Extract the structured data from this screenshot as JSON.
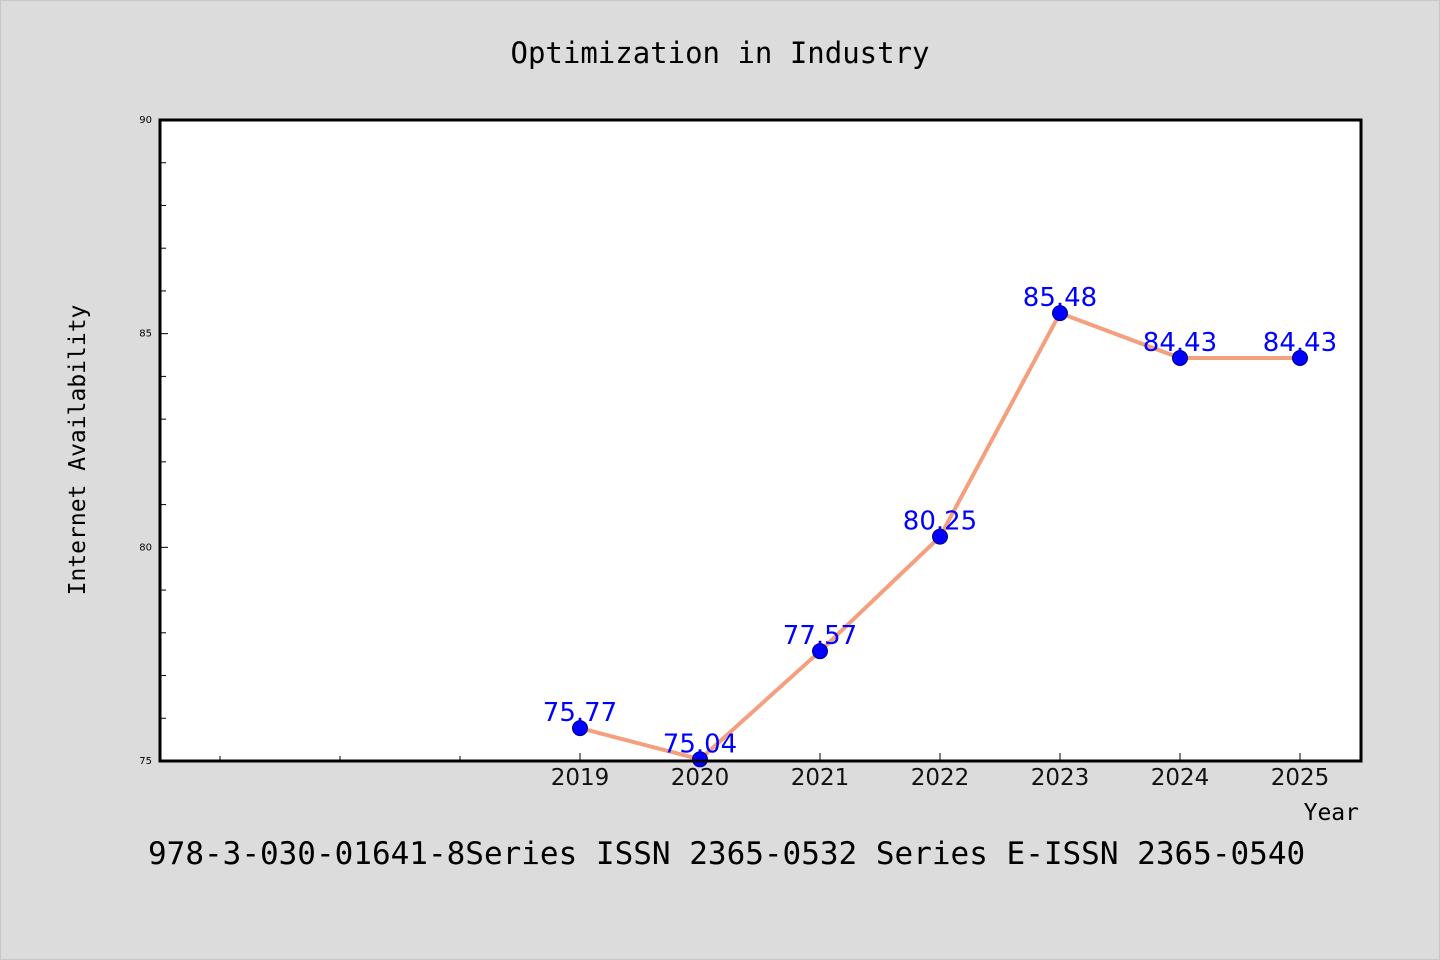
{
  "chart_data": {
    "type": "line",
    "title": "Optimization in Industry",
    "xlabel": "Year",
    "ylabel": "Internet Availability",
    "categories": [
      "2019",
      "2020",
      "2021",
      "2022",
      "2023",
      "2024",
      "2025"
    ],
    "series": [
      {
        "values": [
          75.77,
          75.04,
          77.57,
          80.25,
          85.48,
          84.43,
          84.43
        ],
        "data_labels": [
          "75.77",
          "75.04",
          "77.57",
          "80.25",
          "85.48",
          "84.43",
          "84.43"
        ]
      }
    ],
    "ylim": [
      75,
      90
    ],
    "yticks": [
      "75",
      "80",
      "85",
      "90"
    ],
    "grid": false,
    "legend": "none",
    "colors": {
      "line": "#f4a07f",
      "marker": "#0000ff",
      "label": "#0000ff",
      "background": "#dcdcdc",
      "plot_bg": "#ffffff"
    }
  },
  "footer": "978-3-030-01641-8Series ISSN 2365-0532 Series E-ISSN 2365-0540"
}
